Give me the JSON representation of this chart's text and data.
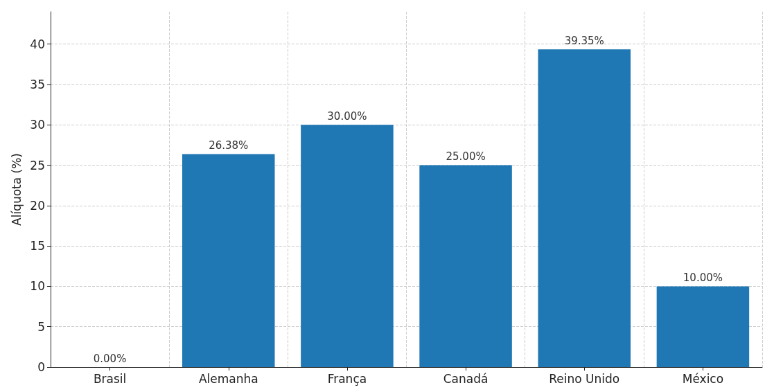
{
  "chart_data": {
    "type": "bar",
    "ylabel": "Alíquota (%)",
    "categories": [
      "Brasil",
      "Alemanha",
      "França",
      "Canadá",
      "Reino Unido",
      "México"
    ],
    "values": [
      0,
      26.38,
      30,
      25,
      39.35,
      10
    ],
    "value_labels": [
      "0.00%",
      "26.38%",
      "30.00%",
      "25.00%",
      "39.35%",
      "10.00%"
    ],
    "color": "#1f77b4",
    "ylim": [
      0,
      44
    ],
    "yticks": [
      0,
      5,
      10,
      15,
      20,
      25,
      30,
      35,
      40
    ],
    "grid": true
  }
}
